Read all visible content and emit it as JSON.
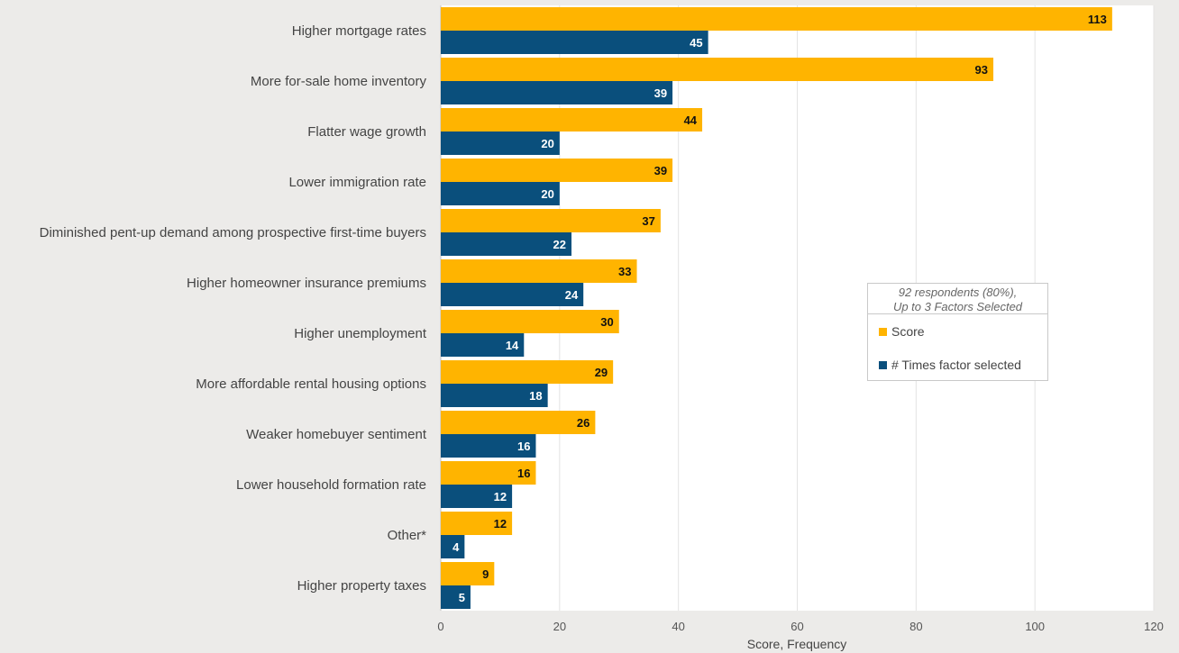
{
  "colors": {
    "score": "#ffb400",
    "frequency": "#0a4f7c",
    "plot_bg": "#ffffff",
    "grid": "#e3e3e3"
  },
  "legend": {
    "note_line1": "92 respondents (80%),",
    "note_line2": "Up to 3 Factors Selected",
    "items": [
      {
        "label": "Score"
      },
      {
        "label": "# Times factor selected"
      }
    ]
  },
  "chart_data": {
    "type": "bar",
    "orientation": "horizontal",
    "title": "",
    "xlabel": "Score, Frequency",
    "ylabel": "",
    "xlim": [
      0,
      120
    ],
    "xticks": [
      0,
      20,
      40,
      60,
      80,
      100,
      120
    ],
    "grid": true,
    "legend_position": "right",
    "categories": [
      "Higher mortgage rates",
      "More for-sale home inventory",
      "Flatter wage growth",
      "Lower immigration rate",
      "Diminished pent-up demand among prospective first-time buyers",
      "Higher homeowner insurance premiums",
      "Higher unemployment",
      "More affordable rental housing options",
      "Weaker homebuyer sentiment",
      "Lower household formation rate",
      "Other*",
      "Higher property taxes"
    ],
    "series": [
      {
        "name": "Score",
        "values": [
          113,
          93,
          44,
          39,
          37,
          33,
          30,
          29,
          26,
          16,
          12,
          9
        ]
      },
      {
        "name": "# Times factor selected",
        "values": [
          45,
          39,
          20,
          20,
          22,
          24,
          14,
          18,
          16,
          12,
          4,
          5
        ]
      }
    ]
  }
}
